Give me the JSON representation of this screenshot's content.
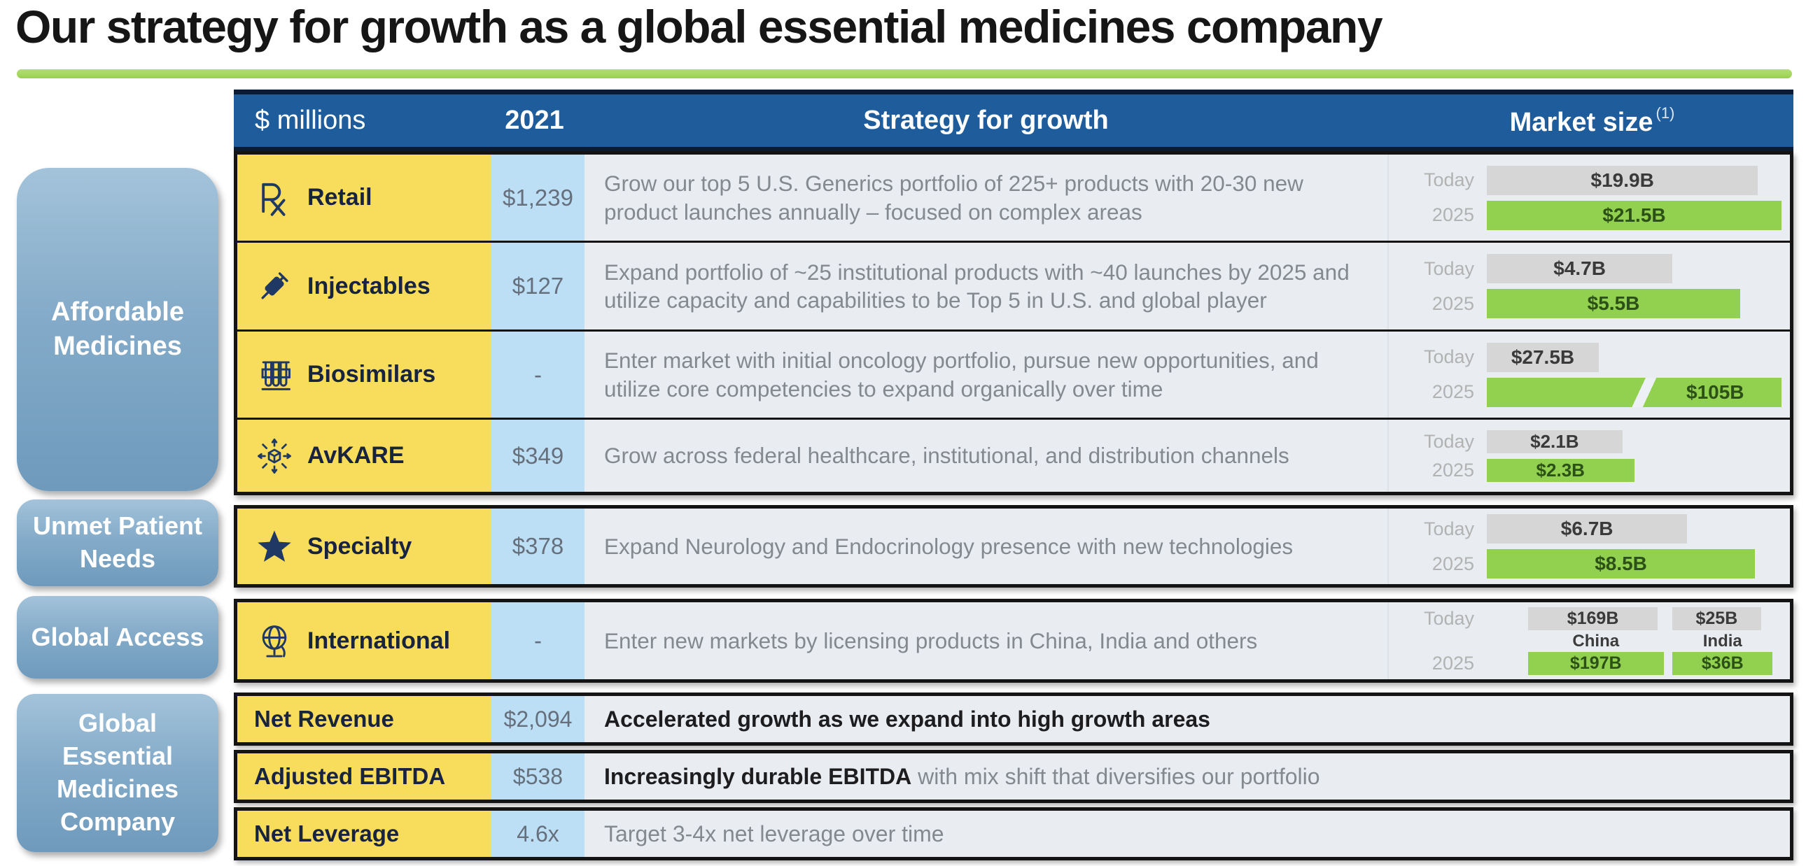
{
  "title": "Our strategy for growth as a global essential medicines company",
  "colors": {
    "header_blue": "#1E5C9B",
    "label_yellow": "#F8DC5C",
    "value_light_blue": "#BCDFF6",
    "row_background": "#E9EDF2",
    "bar_gray": "#D6D6D6",
    "bar_green": "#92D050",
    "sidebar_steel_blue": "#7FA6C5",
    "title_underline_green": "#A5D75F",
    "icon_navy": "#1F3864"
  },
  "column_headers": {
    "col1": "$ millions",
    "col2": "2021",
    "col3": "Strategy for growth",
    "col4": "Market size",
    "col4_footnote": "(1)"
  },
  "market_row_labels": {
    "today": "Today",
    "y2025": "2025"
  },
  "sidebar": [
    {
      "label": "Affordable Medicines"
    },
    {
      "label": "Unmet Patient Needs"
    },
    {
      "label": "Global Access"
    },
    {
      "label": "Global Essential Medicines Company"
    }
  ],
  "segments": [
    {
      "label": "Retail",
      "icon": "rx-prescription-icon",
      "value_2021": "$1,239",
      "strategy": "Grow our top 5 U.S. Generics portfolio of 225+ products with 20-30 new product launches annually – focused on complex areas",
      "market": {
        "today": {
          "label": "$19.9B",
          "width": 92
        },
        "y2025": {
          "label": "$21.5B",
          "width": 100
        }
      }
    },
    {
      "label": "Injectables",
      "icon": "syringe-icon",
      "value_2021": "$127",
      "strategy": "Expand portfolio of ~25 institutional products with ~40 launches by 2025 and utilize capacity and capabilities to be Top 5 in U.S. and global player",
      "market": {
        "today": {
          "label": "$4.7B",
          "width": 63
        },
        "y2025": {
          "label": "$5.5B",
          "width": 86
        }
      }
    },
    {
      "label": "Biosimilars",
      "icon": "test-tubes-icon",
      "value_2021": "-",
      "strategy": "Enter market with initial oncology portfolio, pursue new opportunities, and utilize core competencies to expand organically over time",
      "market": {
        "today": {
          "label": "$27.5B",
          "width": 38
        },
        "y2025": {
          "label": "$105B",
          "width": 100,
          "broken": true
        }
      }
    },
    {
      "label": "AvKARE",
      "icon": "distribution-network-icon",
      "value_2021": "$349",
      "strategy": "Grow across federal healthcare, institutional, and distribution channels",
      "market": {
        "today": {
          "label": "$2.1B",
          "width": 46
        },
        "y2025": {
          "label": "$2.3B",
          "width": 50
        }
      }
    },
    {
      "label": "Specialty",
      "icon": "star-icon",
      "value_2021": "$378",
      "strategy": "Expand Neurology and Endocrinology presence with new technologies",
      "market": {
        "today": {
          "label": "$6.7B",
          "width": 68
        },
        "y2025": {
          "label": "$8.5B",
          "width": 91
        }
      }
    },
    {
      "label": "International",
      "icon": "globe-icon",
      "value_2021": "-",
      "strategy": "Enter new markets by licensing products in China, India and others"
    }
  ],
  "intl": {
    "china": {
      "name": "China",
      "today": {
        "label": "$169B",
        "width": 44
      },
      "y2025": {
        "label": "$197B",
        "width": 46
      }
    },
    "india": {
      "name": "India",
      "today": {
        "label": "$25B",
        "width": 30
      },
      "y2025": {
        "label": "$36B",
        "width": 34
      }
    }
  },
  "financials": [
    {
      "label": "Net Revenue",
      "value": "$2,094",
      "bold": "Accelerated growth as we expand into high growth areas",
      "rest": ""
    },
    {
      "label": "Adjusted EBITDA",
      "value": "$538",
      "bold": "Increasingly durable EBITDA",
      "rest": " with mix shift that diversifies our portfolio"
    },
    {
      "label": "Net Leverage",
      "value": "4.6x",
      "bold": "",
      "rest": "Target 3-4x net leverage over time"
    }
  ]
}
